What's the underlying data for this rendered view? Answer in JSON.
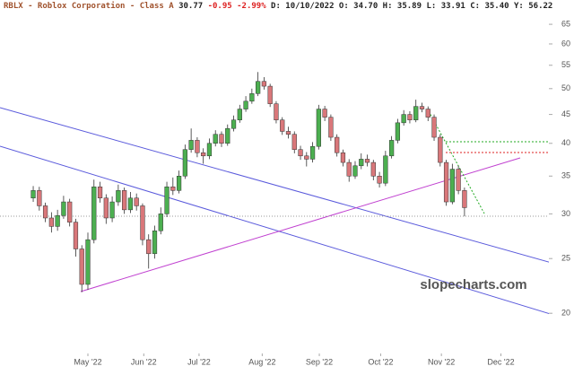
{
  "header": {
    "title": "RBLX - Roblox Corporation - Class A",
    "last": "30.77",
    "change": "-0.95",
    "change_pct": "-2.99%",
    "details": "D: 10/10/2022 O: 34.70 H: 35.89 L: 33.91",
    "close": "C: 35.40",
    "extra": "Y: 56.22"
  },
  "watermark": "slopecharts.com",
  "chart_data": {
    "type": "candlestick",
    "log_scale": true,
    "up_color": "#4caf50",
    "down_color": "#d9777a",
    "ylim": [
      17.1,
      67.2
    ],
    "yticks": [
      20,
      25,
      30,
      35,
      40,
      45,
      50,
      55,
      60,
      65
    ],
    "xlim": [
      -5.47,
      84.6
    ],
    "xticks": [
      {
        "value": 9,
        "label": "May '22"
      },
      {
        "value": 18.2,
        "label": "Jun '22"
      },
      {
        "value": 27.3,
        "label": "Jul '22"
      },
      {
        "value": 37.7,
        "label": "Aug '22"
      },
      {
        "value": 47.1,
        "label": "Sep '22"
      },
      {
        "value": 57.2,
        "label": "Oct '22"
      },
      {
        "value": 67.2,
        "label": "Nov '22"
      },
      {
        "value": 77,
        "label": "Dec '22"
      }
    ],
    "open": [
      32.0,
      33.0,
      31.0,
      29.5,
      28.5,
      29.8,
      31.5,
      29.0,
      26.0,
      22.5,
      27.0,
      33.5,
      32.0,
      29.5,
      31.5,
      33.0,
      30.5,
      32.0,
      31.0,
      27.0,
      25.5,
      28.0,
      30.0,
      33.5,
      33.0,
      35.0,
      39.0,
      40.5,
      38.5,
      38.0,
      40.0,
      41.5,
      40.0,
      42.5,
      44.0,
      46.0,
      47.5,
      49.0,
      51.5,
      50.5,
      47.0,
      44.0,
      42.0,
      41.5,
      39.0,
      38.0,
      37.5,
      39.5,
      46.0,
      44.5,
      41.0,
      38.5,
      37.0,
      35.0,
      36.5,
      37.5,
      37.0,
      35.0,
      34.0,
      38.0,
      40.5,
      43.5,
      45.0,
      44.0,
      46.5,
      46.0,
      44.5,
      41.0,
      37.0,
      31.5,
      36.0,
      33.0
    ],
    "high": [
      33.6,
      33.5,
      31.4,
      30.2,
      30.5,
      32.3,
      31.9,
      29.4,
      26.4,
      27.8,
      34.5,
      34.2,
      32.5,
      32.2,
      33.8,
      33.4,
      32.8,
      32.6,
      31.3,
      27.6,
      28.6,
      30.8,
      34.2,
      34.8,
      35.8,
      39.8,
      42.5,
      41.0,
      39.2,
      40.8,
      42.2,
      42.0,
      43.2,
      44.8,
      46.8,
      48.5,
      50.0,
      53.5,
      52.4,
      51.0,
      47.5,
      44.5,
      42.8,
      42.0,
      39.6,
      38.6,
      40.2,
      46.8,
      46.6,
      45.0,
      41.5,
      39.0,
      37.5,
      37.2,
      38.4,
      38.2,
      37.4,
      35.6,
      38.8,
      41.2,
      44.2,
      45.8,
      45.6,
      47.8,
      47.2,
      46.5,
      45.0,
      41.5,
      37.4,
      36.8,
      36.5,
      33.4
    ],
    "low": [
      31.5,
      30.4,
      29.0,
      27.8,
      28.0,
      29.4,
      28.5,
      25.2,
      21.8,
      22.0,
      26.6,
      31.4,
      28.8,
      29.0,
      31.0,
      30.0,
      30.1,
      30.4,
      26.4,
      24.0,
      25.0,
      27.6,
      29.6,
      32.4,
      32.6,
      34.6,
      38.5,
      37.8,
      36.8,
      37.5,
      39.5,
      39.4,
      39.6,
      42.0,
      43.5,
      45.5,
      47.0,
      48.5,
      49.8,
      46.4,
      43.4,
      41.4,
      40.8,
      38.4,
      37.4,
      36.4,
      37.0,
      39.0,
      43.8,
      40.4,
      37.9,
      36.4,
      34.2,
      34.6,
      36.0,
      36.4,
      34.4,
      33.4,
      33.6,
      37.6,
      40.0,
      43.0,
      43.4,
      43.6,
      45.4,
      43.8,
      40.4,
      36.4,
      31.0,
      31.2,
      32.5,
      29.7
    ],
    "close": [
      33.0,
      31.0,
      29.5,
      28.5,
      29.8,
      31.5,
      29.0,
      26.0,
      22.5,
      27.0,
      33.5,
      32.0,
      29.5,
      31.5,
      33.0,
      30.5,
      32.0,
      31.0,
      27.0,
      25.5,
      28.0,
      30.0,
      33.5,
      33.0,
      35.0,
      39.0,
      40.5,
      38.5,
      38.0,
      40.0,
      41.5,
      40.0,
      42.5,
      44.0,
      46.0,
      47.5,
      49.0,
      51.5,
      50.5,
      47.0,
      44.0,
      42.0,
      41.5,
      39.0,
      38.0,
      37.5,
      39.5,
      46.0,
      44.5,
      41.0,
      38.5,
      37.0,
      35.0,
      36.5,
      37.5,
      37.0,
      35.0,
      34.0,
      38.0,
      40.5,
      43.5,
      45.0,
      44.0,
      46.5,
      46.0,
      44.5,
      41.0,
      37.0,
      31.5,
      36.0,
      33.0,
      30.77
    ]
  }
}
